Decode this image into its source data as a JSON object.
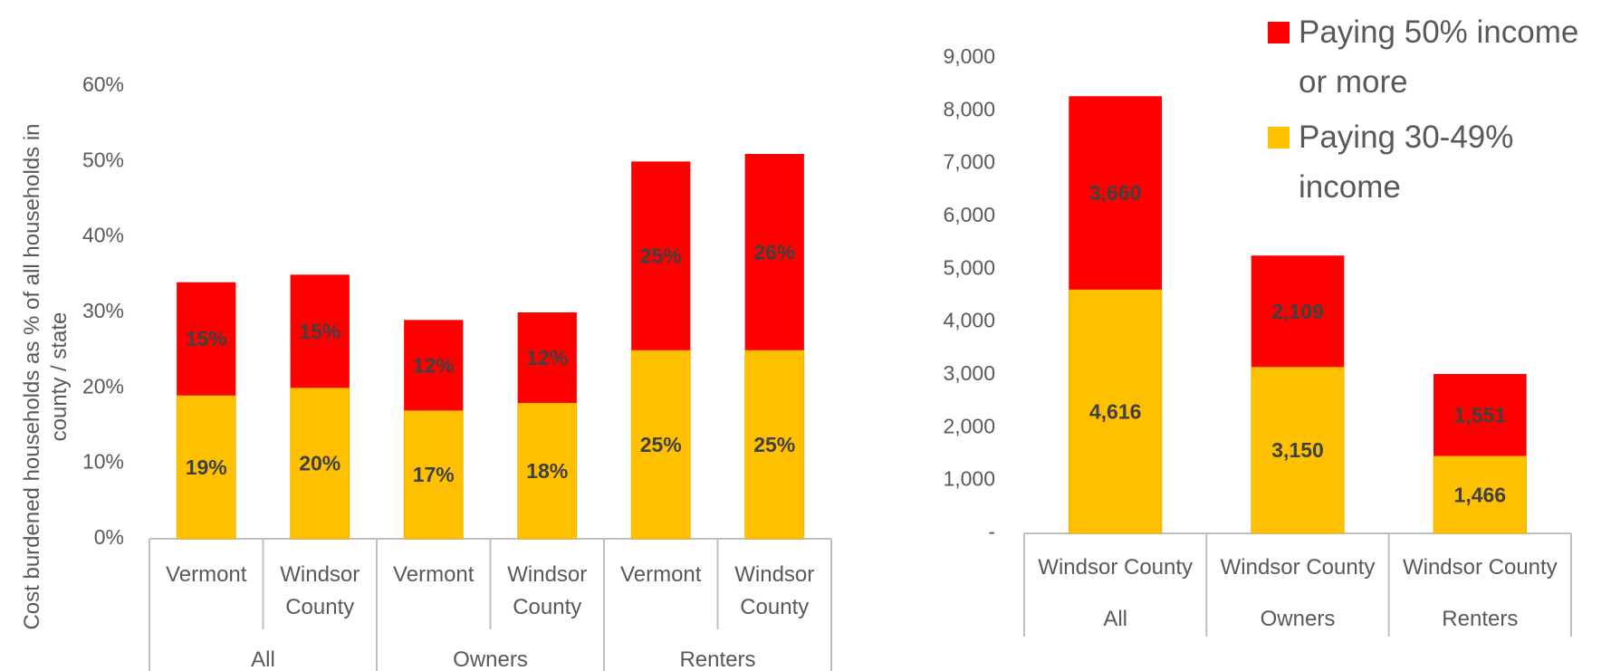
{
  "chart_data": [
    {
      "type": "bar",
      "stacked": true,
      "y_label": "Cost burdened households as % of all households in county / state",
      "groups": [
        {
          "name": "All",
          "categories": [
            "Vermont",
            "Windsor County"
          ]
        },
        {
          "name": "Owners",
          "categories": [
            "Vermont",
            "Windsor County"
          ]
        },
        {
          "name": "Renters",
          "categories": [
            "Vermont",
            "Windsor County"
          ]
        }
      ],
      "series": [
        {
          "color": "#ffc000",
          "values": [
            19,
            20,
            17,
            18,
            25,
            25
          ],
          "value_labels": [
            "19%",
            "20%",
            "17%",
            "18%",
            "25%",
            "25%"
          ]
        },
        {
          "color": "#ff0000",
          "values": [
            15,
            15,
            12,
            12,
            25,
            26
          ],
          "value_labels": [
            "15%",
            "15%",
            "12%",
            "12%",
            "25%",
            "26%"
          ]
        }
      ],
      "ylim": [
        0,
        60
      ],
      "yticks": [
        {
          "value": 0,
          "label": "0%"
        },
        {
          "value": 10,
          "label": "10%"
        },
        {
          "value": 20,
          "label": "20%"
        },
        {
          "value": 30,
          "label": "30%"
        },
        {
          "value": 40,
          "label": "40%"
        },
        {
          "value": 50,
          "label": "50%"
        },
        {
          "value": 60,
          "label": "60%"
        }
      ]
    },
    {
      "type": "bar",
      "stacked": true,
      "groups": [
        {
          "name": "All",
          "categories": [
            "Windsor County"
          ]
        },
        {
          "name": "Owners",
          "categories": [
            "Windsor County"
          ]
        },
        {
          "name": "Renters",
          "categories": [
            "Windsor County"
          ]
        }
      ],
      "series": [
        {
          "name": "Paying 30-49% income",
          "color": "#ffc000",
          "values": [
            4616,
            3150,
            1466
          ],
          "value_labels": [
            "4,616",
            "3,150",
            "1,466"
          ]
        },
        {
          "name": "Paying 50% income or more",
          "color": "#ff0000",
          "values": [
            3660,
            2109,
            1551
          ],
          "value_labels": [
            "3,660",
            "2,109",
            "1,551"
          ]
        }
      ],
      "ylim": [
        0,
        9000
      ],
      "yticks": [
        {
          "value": 0,
          "label": "-"
        },
        {
          "value": 1000,
          "label": "1,000"
        },
        {
          "value": 2000,
          "label": "2,000"
        },
        {
          "value": 3000,
          "label": "3,000"
        },
        {
          "value": 4000,
          "label": "4,000"
        },
        {
          "value": 5000,
          "label": "5,000"
        },
        {
          "value": 6000,
          "label": "6,000"
        },
        {
          "value": 7000,
          "label": "7,000"
        },
        {
          "value": 8000,
          "label": "8,000"
        },
        {
          "value": 9000,
          "label": "9,000"
        }
      ],
      "legend": "top-right"
    }
  ]
}
